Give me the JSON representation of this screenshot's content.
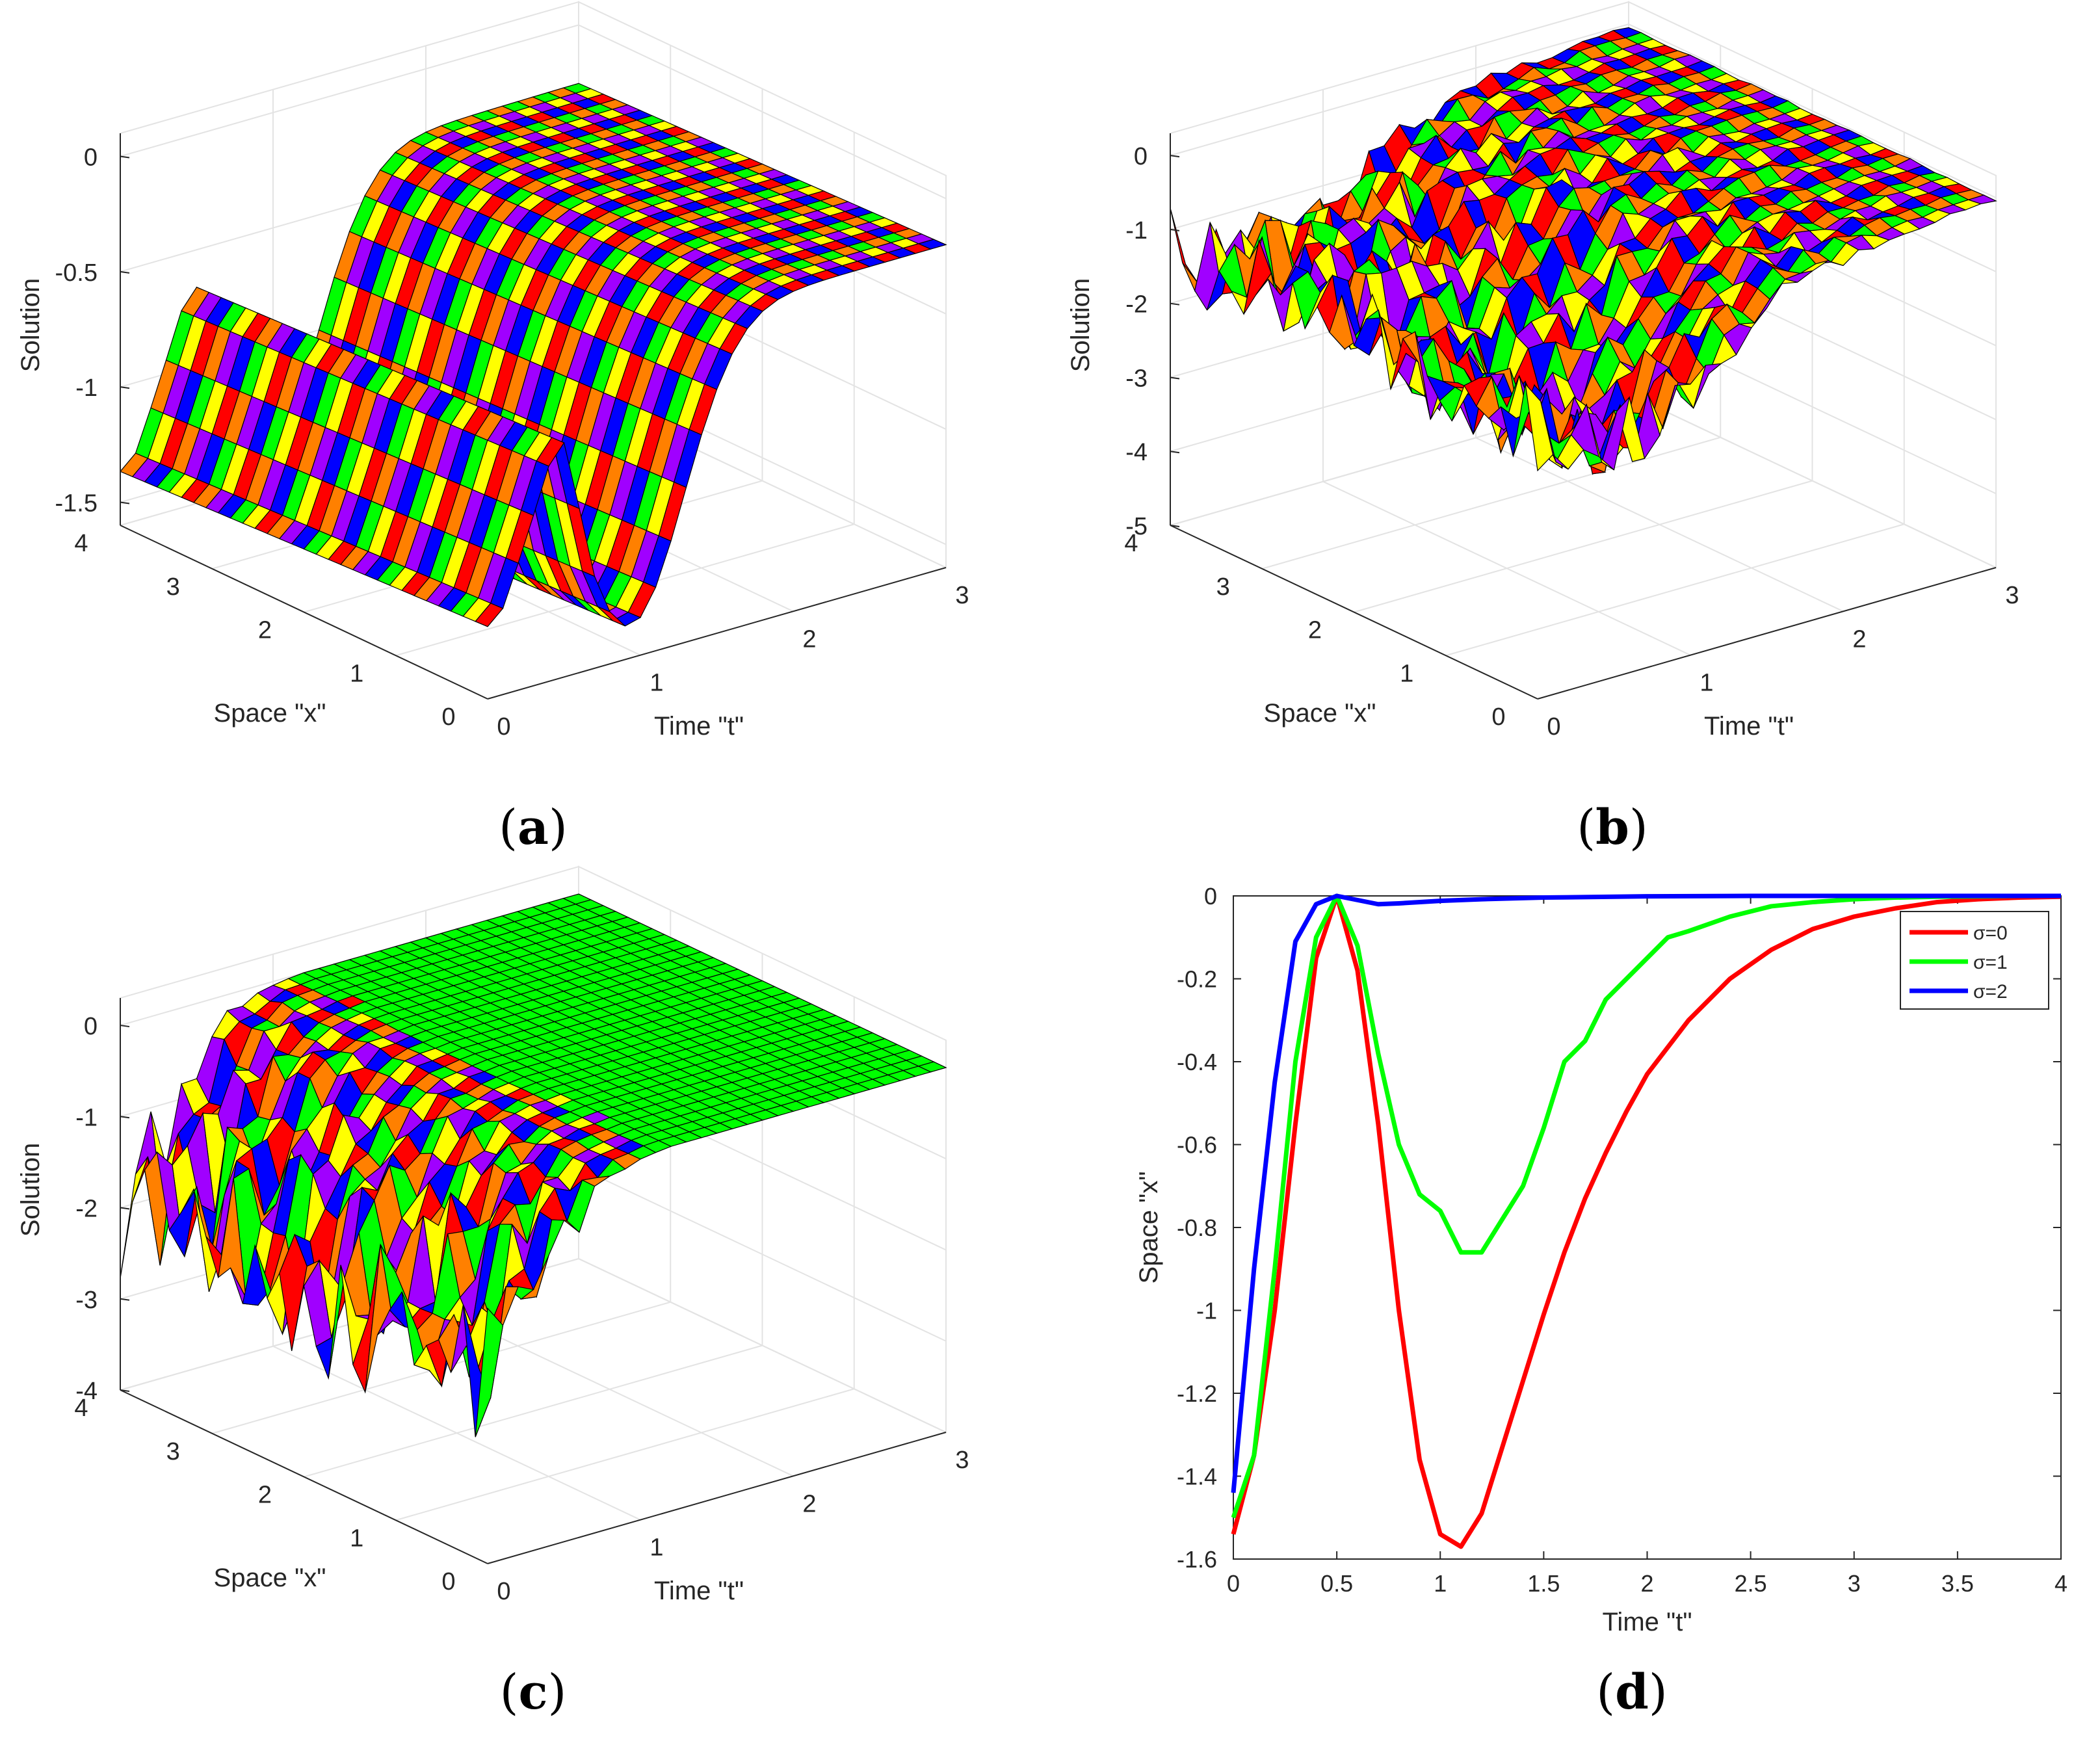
{
  "captions": {
    "a": "a",
    "b": "b",
    "c": "c",
    "d": "d"
  },
  "labels": {
    "solution": "Solution",
    "space_x": "Space \"x\"",
    "time_t": "Time \"t\""
  },
  "surface_a": {
    "type": "surface",
    "zlabel": "Solution",
    "xlabel": "Space \"x\"",
    "ylabel": "Time \"t\"",
    "z_ticks": [
      "0",
      "-0.5",
      "-1",
      "-1.5"
    ],
    "x_ticks": [
      "0",
      "1",
      "2",
      "3",
      "4"
    ],
    "t_ticks": [
      "0",
      "1",
      "2",
      "3"
    ],
    "zlim": [
      -1.6,
      0.1
    ],
    "xlim": [
      0,
      4
    ],
    "tlim": [
      0,
      3
    ]
  },
  "surface_b": {
    "type": "surface",
    "zlabel": "Solution",
    "xlabel": "Space \"x\"",
    "ylabel": "Time \"t\"",
    "z_ticks": [
      "0",
      "-1",
      "-2",
      "-3",
      "-4",
      "-5"
    ],
    "x_ticks": [
      "0",
      "1",
      "2",
      "3",
      "4"
    ],
    "t_ticks": [
      "0",
      "1",
      "2",
      "3"
    ],
    "zlim": [
      -5,
      0.3
    ],
    "xlim": [
      0,
      4
    ],
    "tlim": [
      0,
      3
    ]
  },
  "surface_c": {
    "type": "surface",
    "zlabel": "Solution",
    "xlabel": "Space \"x\"",
    "ylabel": "Time \"t\"",
    "z_ticks": [
      "0",
      "-1",
      "-2",
      "-3",
      "-4"
    ],
    "x_ticks": [
      "0",
      "1",
      "2",
      "3",
      "4"
    ],
    "t_ticks": [
      "0",
      "1",
      "2",
      "3"
    ],
    "zlim": [
      -4,
      0.3
    ],
    "xlim": [
      0,
      4
    ],
    "tlim": [
      0,
      3
    ]
  },
  "chart_data": {
    "type": "line",
    "xlabel": "Time \"t\"",
    "ylabel": "Space \"x\"",
    "xlim": [
      0,
      4
    ],
    "ylim": [
      -1.6,
      0
    ],
    "x_ticks": [
      "0",
      "0.5",
      "1",
      "1.5",
      "2",
      "2.5",
      "3",
      "3.5",
      "4"
    ],
    "y_ticks": [
      "0",
      "-0.2",
      "-0.4",
      "-0.6",
      "-0.8",
      "-1",
      "-1.2",
      "-1.4",
      "-1.6"
    ],
    "legend_position": "top-right",
    "series": [
      {
        "name": "σ=0",
        "color": "#ff0000",
        "x": [
          0,
          0.1,
          0.2,
          0.3,
          0.4,
          0.5,
          0.6,
          0.7,
          0.8,
          0.9,
          1.0,
          1.1,
          1.2,
          1.3,
          1.4,
          1.5,
          1.6,
          1.7,
          1.8,
          1.9,
          2.0,
          2.2,
          2.4,
          2.6,
          2.8,
          3.0,
          3.2,
          3.4,
          3.6,
          3.8,
          4.0
        ],
        "y": [
          -1.54,
          -1.35,
          -1.0,
          -0.55,
          -0.15,
          0,
          -0.18,
          -0.55,
          -1.0,
          -1.36,
          -1.54,
          -1.57,
          -1.49,
          -1.33,
          -1.17,
          -1.01,
          -0.86,
          -0.73,
          -0.62,
          -0.52,
          -0.43,
          -0.3,
          -0.2,
          -0.13,
          -0.08,
          -0.05,
          -0.03,
          -0.015,
          -0.008,
          -0.004,
          -0.002
        ]
      },
      {
        "name": "σ=1",
        "color": "#00ff00",
        "x": [
          0,
          0.1,
          0.2,
          0.3,
          0.4,
          0.5,
          0.6,
          0.7,
          0.8,
          0.9,
          1.0,
          1.1,
          1.2,
          1.3,
          1.4,
          1.5,
          1.6,
          1.7,
          1.8,
          1.9,
          2.0,
          2.1,
          2.2,
          2.4,
          2.6,
          2.8,
          3.0,
          3.2,
          3.4,
          3.6,
          3.8,
          4.0
        ],
        "y": [
          -1.5,
          -1.35,
          -0.9,
          -0.4,
          -0.1,
          0,
          -0.12,
          -0.38,
          -0.6,
          -0.72,
          -0.76,
          -0.86,
          -0.86,
          -0.78,
          -0.7,
          -0.56,
          -0.4,
          -0.35,
          -0.25,
          -0.2,
          -0.15,
          -0.1,
          -0.085,
          -0.05,
          -0.025,
          -0.015,
          -0.008,
          -0.004,
          -0.002,
          -0.001,
          0,
          0
        ]
      },
      {
        "name": "σ=2",
        "color": "#0000ff",
        "x": [
          0,
          0.1,
          0.2,
          0.3,
          0.4,
          0.5,
          0.6,
          0.7,
          0.8,
          1.0,
          1.2,
          1.5,
          2.0,
          2.5,
          3.0,
          3.5,
          4.0
        ],
        "y": [
          -1.44,
          -0.9,
          -0.45,
          -0.11,
          -0.02,
          0,
          -0.01,
          -0.02,
          -0.018,
          -0.012,
          -0.008,
          -0.004,
          -0.001,
          0,
          0,
          0,
          0
        ]
      }
    ]
  }
}
